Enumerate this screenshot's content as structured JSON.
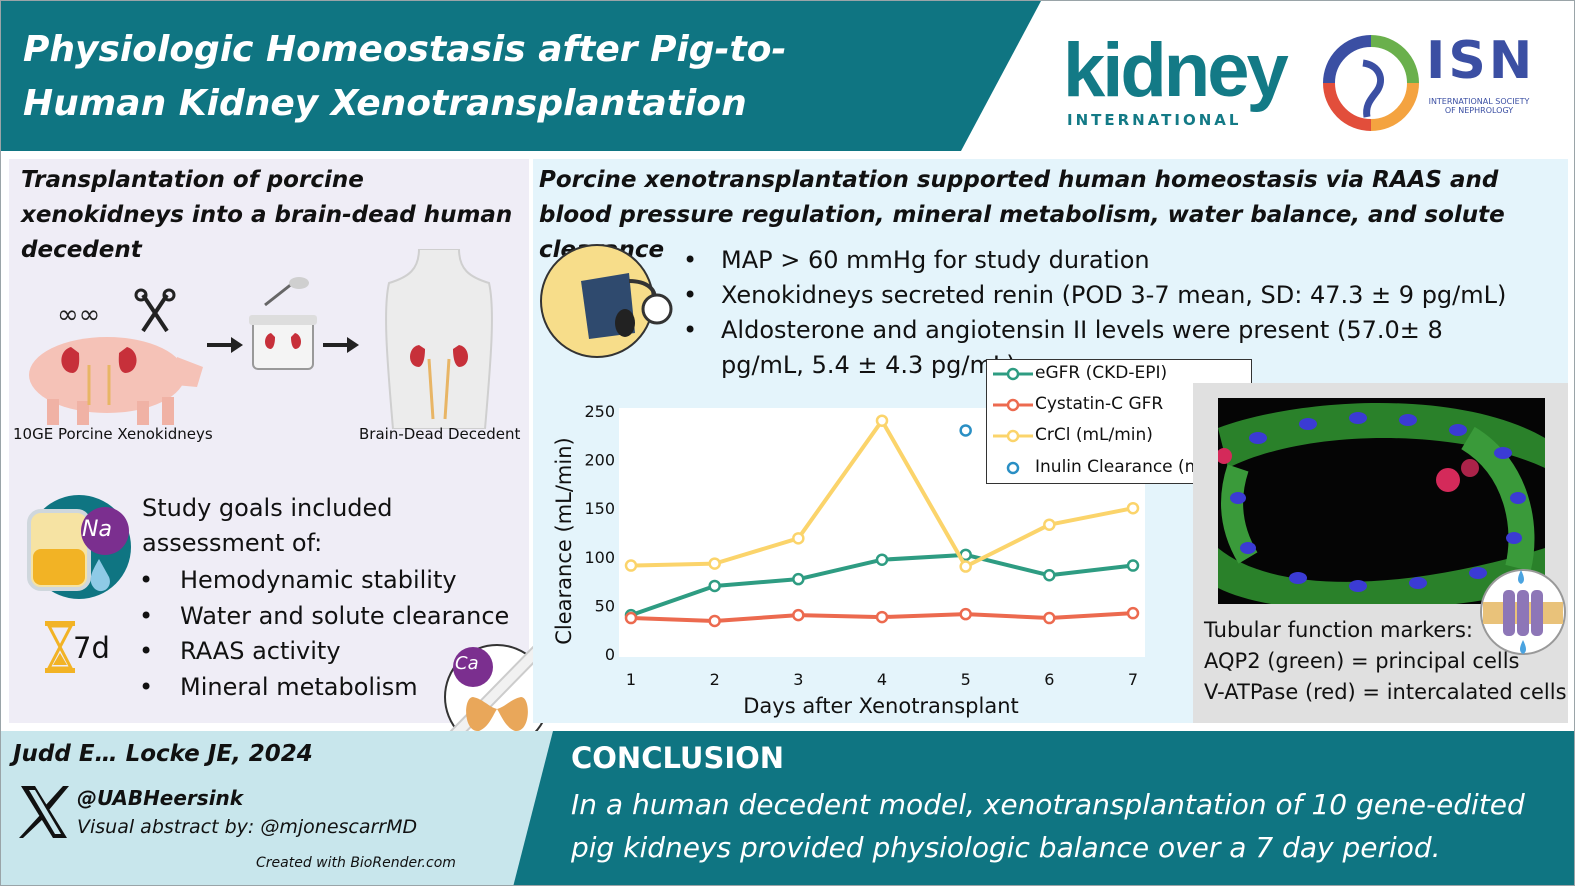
{
  "title": "Physiologic Homeostasis after Pig-to-Human Kidney Xenotransplantation",
  "logos": {
    "journal": "kidney",
    "journal_sub": "INTERNATIONAL",
    "society": "ISN",
    "society_sub": "INTERNATIONAL SOCIETY OF NEPHROLOGY"
  },
  "left": {
    "heading": "Transplantation of porcine xenokidneys into a brain-dead human decedent",
    "caption_left": "10GE Porcine Xenokidneys",
    "caption_right": "Brain-Dead Decedent",
    "na_label": "Na",
    "ca_label": "Ca",
    "goals_intro": "Study goals included assessment of:",
    "goals": [
      "Hemodynamic stability",
      "Water and solute clearance",
      "RAAS activity",
      "Mineral metabolism"
    ],
    "duration": "7d"
  },
  "right": {
    "heading": "Porcine xenotransplantation supported human homeostasis via RAAS and blood pressure regulation, mineral metabolism, water balance, and solute clearance",
    "findings": [
      "MAP > 60 mmHg for study duration",
      "Xenokidneys secreted renin (POD 3-7 mean, SD: 47.3 ± 9 pg/mL)",
      "Aldosterone and angiotensin II levels were present (57.0± 8 pg/mL, 5.4 ± 4.3 pg/mL)"
    ],
    "markers_title": "Tubular function markers:",
    "markers": [
      "AQP2 (green) = principal cells",
      "V-ATPase (red) = intercalated cells"
    ]
  },
  "footer": {
    "citation": "Judd E… Locke JE, 2024",
    "handle": "@UABHeersink",
    "visual_by": "Visual abstract by: @mjonescarrMD",
    "created_with": "Created with BioRender.com",
    "conclusion_title": "CONCLUSION",
    "conclusion_text": "In a human decedent model, xenotransplantation of 10 gene-edited pig kidneys provided physiologic balance over a 7 day period."
  },
  "colors": {
    "teal": "#0f7582",
    "egfr": "#2e9c82",
    "cystatin": "#ec6a4f",
    "crcl": "#fbd46b",
    "inulin": "#2a8fc4"
  },
  "chart_data": {
    "type": "line",
    "xlabel": "Days after Xenotransplant",
    "ylabel": "Clearance (mL/min)",
    "categories": [
      "1",
      "2",
      "3",
      "4",
      "5",
      "6",
      "7"
    ],
    "x": [
      1,
      2,
      3,
      4,
      5,
      6,
      7
    ],
    "ylim": [
      0,
      250
    ],
    "yticks": [
      "0",
      "50",
      "100",
      "150",
      "200",
      "250"
    ],
    "ytick_values": [
      0,
      50,
      100,
      150,
      200,
      250
    ],
    "legend_position": "top-right",
    "series": [
      {
        "name": "eGFR (CKD-EPI)",
        "style": "line-marker",
        "color": "#2e9c82",
        "values": [
          40,
          70,
          77,
          97,
          102,
          81,
          91
        ]
      },
      {
        "name": "Cystatin-C GFR",
        "style": "line-marker",
        "color": "#ec6a4f",
        "values": [
          37,
          34,
          40,
          38,
          41,
          37,
          42
        ]
      },
      {
        "name": "CrCl (mL/min)",
        "style": "line-marker",
        "color": "#fbd46b",
        "values": [
          91,
          93,
          119,
          240,
          90,
          133,
          150
        ]
      },
      {
        "name": "Inulin Clearance (mL/min)",
        "style": "marker",
        "color": "#2a8fc4",
        "values": [
          null,
          null,
          null,
          null,
          230,
          null,
          null
        ]
      }
    ]
  }
}
